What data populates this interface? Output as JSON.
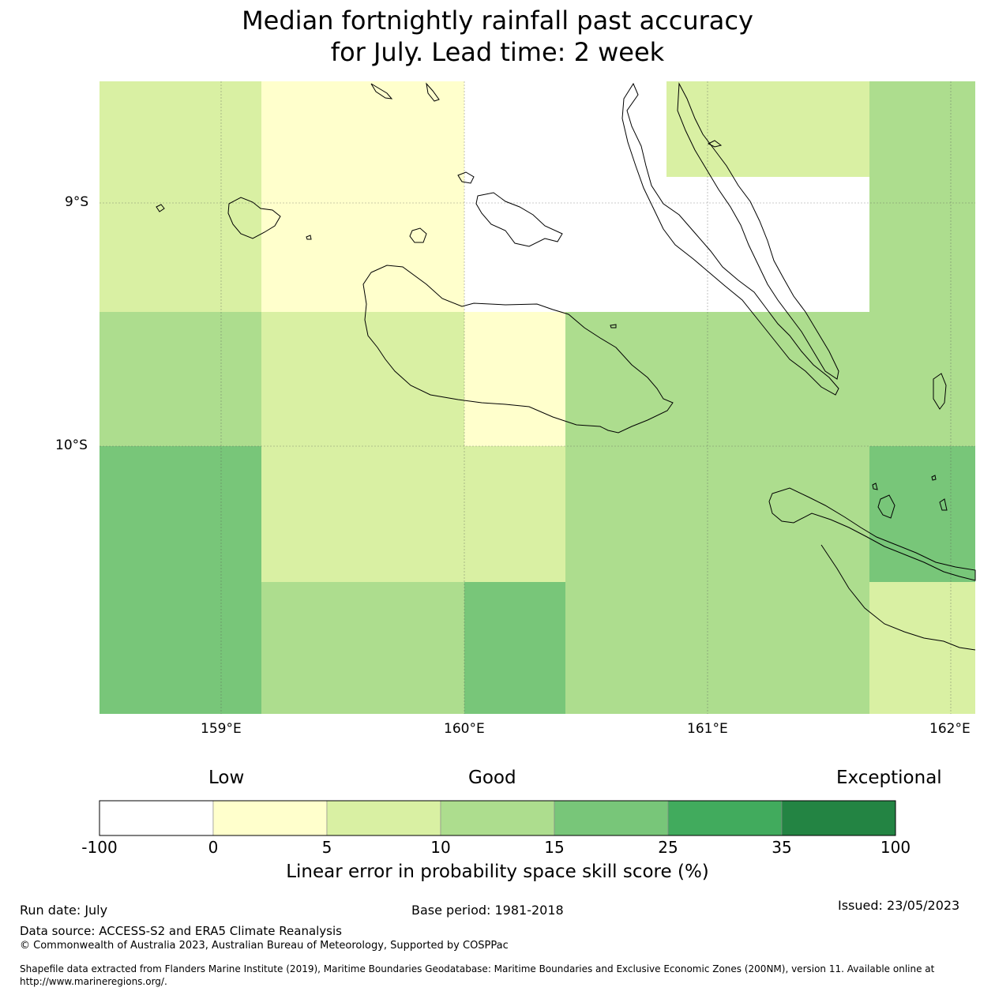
{
  "title": {
    "line1": "Median fortnightly rainfall past accuracy",
    "line2": "for July. Lead time: 2 week"
  },
  "map": {
    "lat_labels": [
      "9°S",
      "10°S"
    ],
    "lon_labels": [
      "159°E",
      "160°E",
      "161°E",
      "162°E"
    ],
    "grid": [
      [
        "5-10",
        "0-5",
        "no-data",
        "no-data",
        "5-10",
        "10-15"
      ],
      [
        "5-10",
        "0-5",
        "no-data",
        "no-data",
        "no-data",
        "10-15"
      ],
      [
        "10-15",
        "5-10",
        "0-5",
        "10-15",
        "10-15",
        "10-15"
      ],
      [
        "15-25",
        "5-10",
        "5-10",
        "10-15",
        "10-15",
        "15-25"
      ],
      [
        "15-25",
        "10-15",
        "15-25",
        "10-15",
        "10-15",
        "5-10"
      ]
    ],
    "colors": {
      "no-data": "#ffffff",
      "0-5": "#ffffcc",
      "5-10": "#d9f0a3",
      "10-15": "#addd8e",
      "15-25": "#78c679",
      "25-35": "#41ab5d",
      "35-100": "#238443"
    }
  },
  "colorbar": {
    "categories": [
      "Low",
      "Good",
      "Exceptional"
    ],
    "ticks": [
      "-100",
      "0",
      "5",
      "10",
      "15",
      "25",
      "35",
      "100"
    ],
    "colors": [
      "#ffffff",
      "#ffffcc",
      "#d9f0a3",
      "#addd8e",
      "#78c679",
      "#41ab5d",
      "#238443"
    ],
    "label": "Linear error in probability space skill score (%)"
  },
  "footer": {
    "run_date": "Run date: July",
    "base_period": "Base period: 1981-2018",
    "issued": "Issued: 23/05/2023",
    "data_source": "Data source: ACCESS-S2 and ERA5 Climate Reanalysis",
    "copyright": "© Commonwealth of Australia 2023, Australian Bureau of Meteorology, Supported by COSPPac",
    "shapefile_line1": "Shapefile data extracted from Flanders Marine Institute (2019), Maritime Boundaries Geodatabase: Maritime Boundaries and Exclusive Economic Zones (200NM), version 11. Available online at",
    "shapefile_line2": "http://www.marineregions.org/."
  }
}
